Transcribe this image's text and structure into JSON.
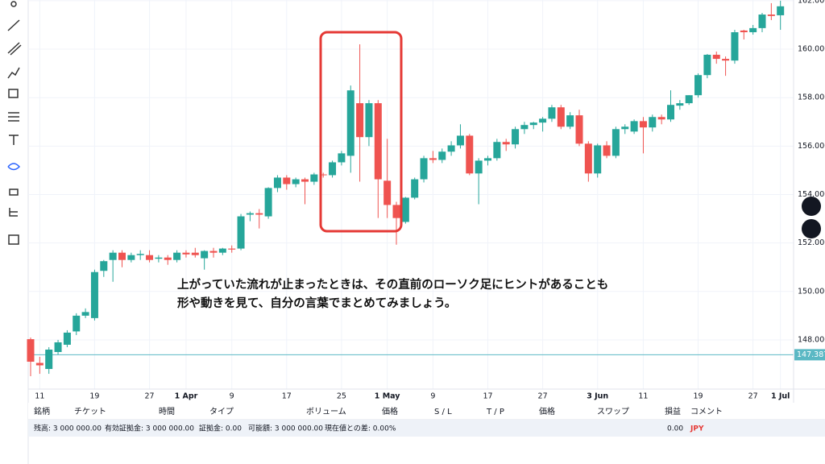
{
  "chart_data": {
    "type": "candlestick",
    "categories": [
      null,
      "11",
      null,
      null,
      null,
      null,
      null,
      "19",
      null,
      null,
      null,
      null,
      null,
      "27",
      null,
      null,
      null,
      "1 Apr",
      null,
      null,
      null,
      null,
      "9",
      null,
      null,
      null,
      null,
      null,
      "17",
      null,
      null,
      null,
      null,
      null,
      "25",
      null,
      null,
      null,
      null,
      "1 May",
      null,
      null,
      null,
      null,
      "9",
      null,
      null,
      null,
      null,
      null,
      "17",
      null,
      null,
      null,
      null,
      null,
      "27",
      null,
      null,
      null,
      null,
      null,
      "3 Jun",
      null,
      null,
      null,
      null,
      "11",
      null,
      null,
      null,
      null,
      null,
      "19",
      null,
      null,
      null,
      null,
      null,
      "27",
      null,
      null,
      "1 Jul"
    ],
    "open": [
      148.03,
      147.05,
      146.8,
      147.5,
      147.8,
      148.35,
      149.0,
      148.9,
      150.85,
      151.3,
      151.6,
      151.3,
      151.5,
      151.5,
      151.35,
      151.4,
      151.3,
      151.6,
      151.6,
      151.37,
      151.67,
      151.6,
      151.77,
      151.77,
      153.17,
      153.23,
      153.1,
      154.27,
      154.7,
      154.43,
      154.63,
      154.53,
      154.83,
      154.8,
      155.33,
      155.6,
      157.77,
      156.37,
      157.77,
      154.57,
      153.57,
      152.87,
      153.87,
      154.63,
      155.5,
      155.43,
      155.77,
      156.03,
      156.43,
      154.87,
      155.4,
      155.5,
      156.17,
      156.07,
      156.7,
      156.87,
      156.97,
      157.13,
      157.6,
      156.8,
      157.27,
      156.1,
      154.87,
      156.03,
      155.6,
      156.7,
      156.6,
      157.03,
      156.77,
      157.2,
      157.1,
      157.67,
      157.77,
      158.1,
      158.93,
      159.77,
      159.6,
      159.53,
      160.77,
      160.7,
      160.87,
      161.43,
      161.4
    ],
    "high": [
      148.1,
      147.3,
      147.7,
      148.0,
      148.4,
      149.1,
      149.3,
      150.9,
      151.3,
      151.7,
      151.7,
      151.6,
      151.7,
      151.7,
      151.5,
      151.5,
      151.7,
      151.7,
      151.8,
      151.7,
      151.8,
      151.8,
      151.9,
      153.2,
      153.3,
      153.4,
      154.3,
      154.8,
      154.8,
      154.7,
      154.7,
      154.9,
      154.9,
      155.4,
      155.8,
      158.5,
      160.2,
      157.9,
      157.9,
      156.3,
      153.7,
      153.9,
      154.7,
      155.6,
      155.8,
      155.9,
      156.2,
      156.9,
      156.5,
      155.5,
      155.6,
      156.3,
      156.3,
      156.8,
      157.0,
      157.0,
      157.2,
      157.7,
      157.7,
      157.4,
      157.5,
      156.2,
      156.1,
      156.2,
      156.8,
      156.9,
      157.1,
      157.2,
      157.3,
      157.3,
      158.3,
      157.9,
      158.1,
      159.0,
      159.8,
      159.9,
      159.7,
      160.8,
      160.8,
      161.0,
      161.5,
      161.9,
      162.0
    ],
    "low": [
      146.5,
      146.6,
      146.6,
      147.4,
      147.7,
      148.2,
      148.9,
      148.8,
      150.6,
      150.4,
      151.0,
      151.2,
      151.3,
      151.2,
      151.2,
      151.1,
      151.2,
      151.4,
      151.4,
      150.9,
      151.4,
      151.5,
      151.6,
      151.7,
      152.9,
      152.6,
      153.0,
      154.1,
      154.2,
      154.3,
      153.6,
      154.4,
      154.7,
      154.7,
      155.2,
      154.9,
      154.53,
      156.0,
      153.03,
      153.03,
      151.93,
      152.8,
      153.8,
      154.5,
      155.3,
      155.3,
      155.6,
      155.9,
      154.8,
      153.6,
      155.2,
      155.4,
      155.8,
      155.9,
      156.5,
      156.7,
      156.6,
      157.0,
      156.7,
      156.7,
      156.0,
      154.53,
      154.7,
      155.5,
      155.5,
      156.5,
      156.5,
      155.7,
      156.6,
      156.9,
      157.0,
      157.5,
      157.7,
      158.0,
      158.8,
      159.4,
      158.9,
      159.4,
      160.4,
      160.6,
      160.7,
      161.2,
      160.8
    ],
    "close": [
      147.1,
      146.95,
      147.6,
      147.9,
      148.3,
      149.0,
      149.15,
      150.8,
      151.25,
      151.6,
      151.3,
      151.5,
      151.55,
      151.3,
      151.4,
      151.3,
      151.6,
      151.53,
      151.5,
      151.67,
      151.6,
      151.77,
      151.73,
      153.1,
      153.23,
      153.17,
      154.27,
      154.7,
      154.43,
      154.63,
      154.53,
      154.83,
      154.8,
      155.33,
      155.7,
      158.3,
      156.37,
      157.77,
      154.63,
      153.57,
      153.03,
      153.87,
      154.63,
      155.5,
      155.43,
      155.77,
      156.03,
      156.43,
      154.87,
      155.4,
      155.5,
      156.17,
      156.07,
      156.7,
      156.87,
      156.97,
      157.13,
      157.6,
      156.8,
      157.27,
      156.1,
      154.87,
      156.03,
      155.6,
      156.7,
      156.8,
      157.03,
      156.77,
      157.2,
      157.1,
      157.7,
      157.77,
      158.1,
      158.93,
      159.77,
      159.6,
      159.53,
      160.7,
      160.7,
      160.87,
      161.43,
      161.37,
      161.77
    ],
    "up_color": "#26a69a",
    "down_color": "#ef5350",
    "ylim": [
      145.97,
      162.03
    ],
    "yticks": [
      {
        "value": 148,
        "label": "148.000"
      },
      {
        "value": 150,
        "label": "150.000"
      },
      {
        "value": 152,
        "label": "152.000"
      },
      {
        "value": 154,
        "label": "154.000"
      },
      {
        "value": 156,
        "label": "156.000"
      },
      {
        "value": 158,
        "label": "158.000"
      },
      {
        "value": 160,
        "label": "160.000"
      },
      {
        "value": 162,
        "label": "162.000"
      }
    ],
    "grid": true,
    "price_line": {
      "value": 147.387,
      "color": "#5bb8c4"
    },
    "annotation": [
      "上がっていた流れが止まったときは、その直前のローソク足にヒントがあることも",
      "形や動きを見て、自分の言葉でまとめてみましょう。"
    ]
  },
  "table": {
    "headers": [
      "銘柄",
      "チケット",
      "時間",
      "タイプ",
      "ボリューム",
      "価格",
      "S / L",
      "T / P",
      "価格",
      "スワップ",
      "損益",
      "コメント"
    ],
    "summary": [
      "残高: 3 000 000.00",
      "有効証拠金: 3 000 000.00",
      "証拠金: 0.00",
      "可能額: 3 000 000.00",
      "現在値との差: 0.00%"
    ],
    "pnl": "0.00",
    "currency": "JPY"
  }
}
